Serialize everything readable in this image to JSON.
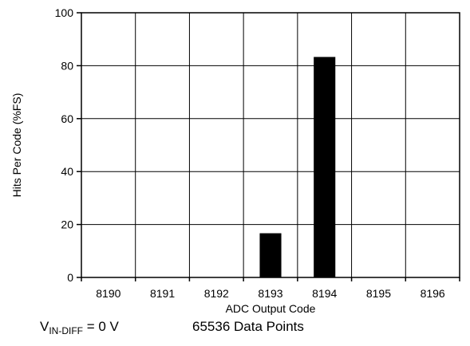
{
  "chart_data": {
    "type": "bar",
    "categories": [
      "8190",
      "8191",
      "8192",
      "8193",
      "8194",
      "8195",
      "8196"
    ],
    "values": [
      0,
      0,
      0,
      16.7,
      83.3,
      0,
      0
    ],
    "xlabel": "ADC Output Code",
    "ylabel": "Hits  Per Code (%FS)",
    "ylim": [
      0,
      100
    ],
    "yticks": [
      0,
      20,
      40,
      60,
      80,
      100
    ],
    "grid": true,
    "bar_color": "#000000"
  },
  "caption": {
    "condition_var": "V",
    "condition_sub": "IN-DIFF",
    "condition_value": " = 0 V",
    "points": "65536 Data Points"
  }
}
